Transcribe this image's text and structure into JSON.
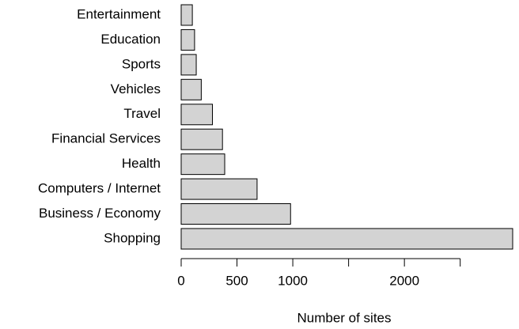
{
  "chart_data": {
    "type": "bar",
    "orientation": "horizontal",
    "categories": [
      "Entertainment",
      "Education",
      "Sports",
      "Vehicles",
      "Travel",
      "Financial Services",
      "Health",
      "Computers / Internet",
      "Business / Economy",
      "Shopping"
    ],
    "values": [
      100,
      120,
      135,
      180,
      280,
      370,
      390,
      680,
      980,
      2970
    ],
    "color": "#d3d3d3",
    "xlabel": "Number of sites",
    "xlim": [
      0,
      2970
    ],
    "xticks": [
      0,
      500,
      1000,
      {
        "value": 1500,
        "label": null
      },
      2000,
      {
        "value": 2500,
        "label": null
      }
    ],
    "grid": false
  }
}
